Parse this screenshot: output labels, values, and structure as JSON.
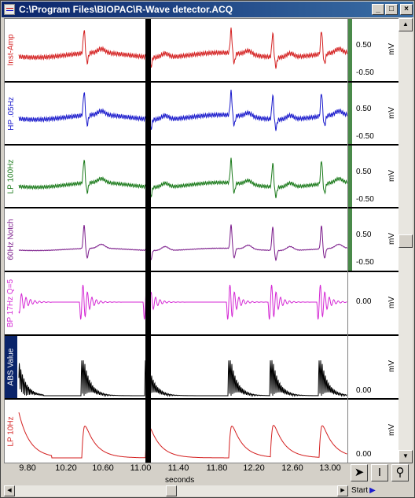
{
  "window": {
    "title": "C:\\Program Files\\BIOPAC\\R-Wave detector.ACQ",
    "minimize_icon": "minimize-icon",
    "maximize_icon": "maximize-icon",
    "close_icon": "close-icon"
  },
  "colors": {
    "inst_amp": "#d42020",
    "hp": "#1a1acc",
    "lp100": "#1a7a1a",
    "notch": "#7a1a8a",
    "bp": "#d428d4",
    "abs": "#000000",
    "lp10": "#d42020"
  },
  "channels": [
    {
      "label": "Inst-Amp",
      "scale_hi": "0.50",
      "scale_lo": "-0.50",
      "unit": "mV"
    },
    {
      "label": "HP .05Hz",
      "scale_hi": "0.50",
      "scale_lo": "-0.50",
      "unit": "mV"
    },
    {
      "label": "LP 100Hz",
      "scale_hi": "0.50",
      "scale_lo": "-0.50",
      "unit": "mV"
    },
    {
      "label": "60Hz Notch",
      "scale_hi": "0.50",
      "scale_lo": "-0.50",
      "unit": "mV"
    },
    {
      "label": "BP 17Hz Q=5",
      "scale_mid": "0.00",
      "unit": "mV"
    },
    {
      "label": "ABS Value",
      "scale_lo": "0.00",
      "unit": "mV"
    },
    {
      "label": "LP 10Hz",
      "scale_lo": "0.00",
      "unit": "mV"
    }
  ],
  "xaxis": {
    "ticks": [
      "9.80",
      "10.20",
      "10.60",
      "11.00",
      "11.40",
      "11.80",
      "12.20",
      "12.60",
      "13.00"
    ],
    "unit_label": "seconds"
  },
  "tools": {
    "arrow": "arrow-tool-icon",
    "ibeam": "ibeam-tool-icon",
    "zoom": "zoom-tool-icon"
  },
  "start_button": {
    "label": "Start"
  }
}
